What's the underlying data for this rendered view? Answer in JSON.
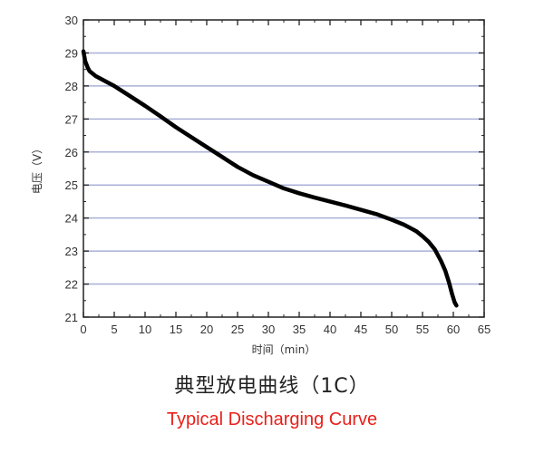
{
  "chart_data": {
    "type": "line",
    "title": "典型放电曲线（1C）",
    "subtitle": "Typical Discharging Curve",
    "xlabel": "时间（min）",
    "ylabel": "电压（V）",
    "xlim": [
      0,
      65
    ],
    "ylim": [
      21,
      30
    ],
    "xticks": [
      0,
      5,
      10,
      15,
      20,
      25,
      30,
      35,
      40,
      45,
      50,
      55,
      60,
      65
    ],
    "yticks": [
      21,
      22,
      23,
      24,
      25,
      26,
      27,
      28,
      29,
      30
    ],
    "grid": "horizontal",
    "colors": {
      "line": "#000000",
      "grid": "#aab0d8",
      "subtitle": "#e8201a"
    },
    "series": [
      {
        "x": [
          0,
          0.3,
          0.7,
          1,
          2,
          3,
          5,
          7.5,
          10,
          12.5,
          15,
          17.5,
          20,
          22.5,
          25,
          27.5,
          30,
          32.5,
          35,
          37.5,
          40,
          42.5,
          45,
          47.5,
          50,
          52,
          54,
          55,
          56,
          57,
          58,
          58.7,
          59.3,
          59.8,
          60.2,
          60.5
        ],
        "y": [
          29.05,
          28.75,
          28.55,
          28.45,
          28.3,
          28.2,
          28.0,
          27.7,
          27.4,
          27.08,
          26.75,
          26.45,
          26.15,
          25.85,
          25.55,
          25.3,
          25.1,
          24.9,
          24.75,
          24.62,
          24.5,
          24.38,
          24.25,
          24.12,
          23.95,
          23.8,
          23.6,
          23.45,
          23.28,
          23.05,
          22.7,
          22.4,
          22.05,
          21.7,
          21.45,
          21.35
        ]
      }
    ]
  }
}
